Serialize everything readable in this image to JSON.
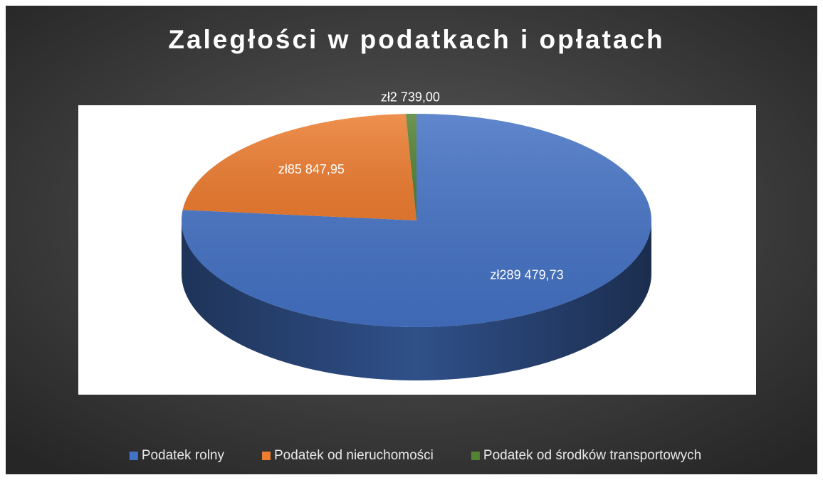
{
  "chart_data": {
    "type": "pie",
    "title": "Zaległości w podatkach i opłatach",
    "categories": [
      "Podatek rolny",
      "Podatek od nieruchomości",
      "Podatek od środków transportowych"
    ],
    "values": [
      289479.73,
      85847.95,
      2739.0
    ],
    "value_labels": [
      "zł289 479,73",
      "zł85 847,95",
      "zł2 739,00"
    ],
    "colors": [
      "#4472c4",
      "#ed7d31",
      "#548235"
    ],
    "legend": "bottom"
  }
}
